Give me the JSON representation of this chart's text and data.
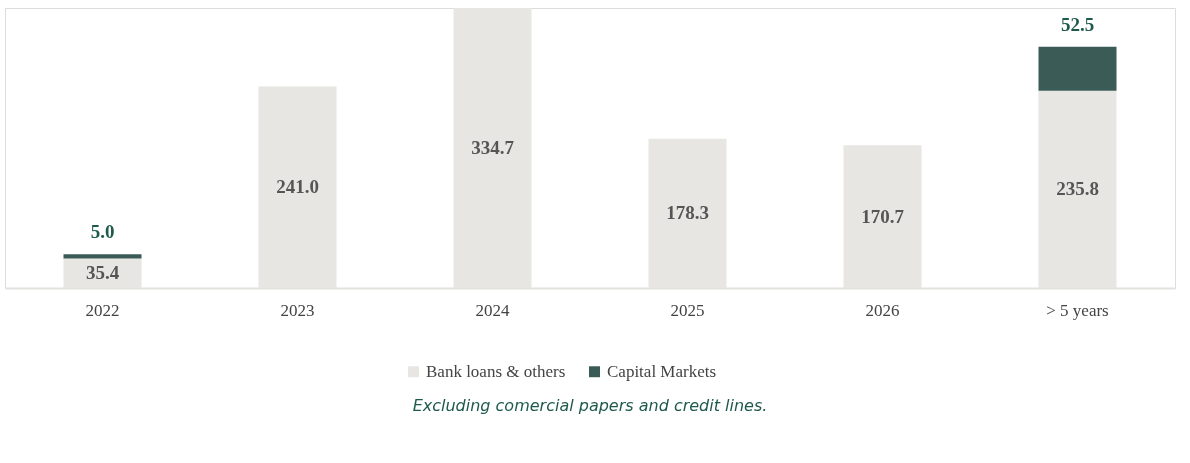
{
  "chart_data": {
    "type": "bar",
    "stacked": true,
    "legend": "bottom",
    "grid": false,
    "categories": [
      "2022",
      "2023",
      "2024",
      "2025",
      "2026",
      "> 5 years"
    ],
    "series": [
      {
        "name": "Bank loans & others",
        "color": "#e8e6e3",
        "values": [
          35.4,
          241.0,
          334.7,
          178.3,
          170.7,
          235.8
        ],
        "value_labels": [
          "35.4",
          "241.0",
          "334.7",
          "178.3",
          "170.7",
          "235.8"
        ]
      },
      {
        "name": "Capital Markets",
        "color": "#3b5b57",
        "values": [
          5.0,
          null,
          null,
          null,
          null,
          52.5
        ],
        "value_labels": [
          "5.0",
          null,
          null,
          null,
          null,
          "52.5"
        ]
      }
    ],
    "annotations": [
      "Excluding comercial papers and credit lines."
    ]
  }
}
